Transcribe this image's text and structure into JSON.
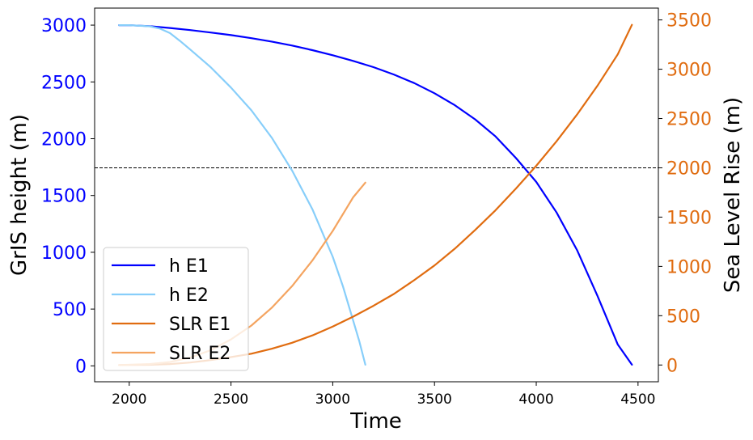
{
  "chart_data": {
    "type": "line",
    "xlabel": "Time",
    "ylabel_left": "GrIS height (m)",
    "ylabel_right": "Sea Level Rise (m)",
    "xlim": [
      1830,
      4600
    ],
    "ylim_left": [
      -140,
      3150
    ],
    "ylim_right": [
      -170,
      3620
    ],
    "x_ticks": [
      2000,
      2500,
      3000,
      3500,
      4000,
      4500
    ],
    "y_ticks_left": [
      0,
      500,
      1000,
      1500,
      2000,
      2500,
      3000
    ],
    "y_ticks_right": [
      0,
      500,
      1000,
      1500,
      2000,
      2500,
      3000,
      3500
    ],
    "x_tick_labels": [
      "2000",
      "2500",
      "3000",
      "3500",
      "4000",
      "4500"
    ],
    "y_tick_labels_left": [
      "0",
      "500",
      "1000",
      "1500",
      "2000",
      "2500",
      "3000"
    ],
    "y_tick_labels_right": [
      "0",
      "500",
      "1000",
      "1500",
      "2000",
      "2500",
      "3000",
      "3500"
    ],
    "left_axis_color": "#0000ff",
    "right_axis_color": "#e06c10",
    "threshold_line": {
      "axis": "right",
      "value": 2000,
      "style": "dashed",
      "color": "#000000"
    },
    "legend_position": "lower-left",
    "series": [
      {
        "name": "h E1",
        "axis": "left",
        "color": "#0000ff",
        "x": [
          1950,
          2000,
          2100,
          2200,
          2300,
          2400,
          2500,
          2600,
          2700,
          2800,
          2900,
          3000,
          3100,
          3200,
          3300,
          3400,
          3500,
          3600,
          3700,
          3800,
          3900,
          4000,
          4100,
          4200,
          4300,
          4400,
          4470
        ],
        "values": [
          3000,
          2999,
          2991,
          2975,
          2956,
          2935,
          2912,
          2885,
          2855,
          2820,
          2780,
          2735,
          2685,
          2630,
          2565,
          2490,
          2400,
          2295,
          2170,
          2020,
          1830,
          1620,
          1350,
          1020,
          620,
          190,
          10
        ]
      },
      {
        "name": "h E2",
        "axis": "left",
        "color": "#87cefa",
        "x": [
          1950,
          2000,
          2100,
          2150,
          2200,
          2250,
          2300,
          2400,
          2500,
          2600,
          2700,
          2800,
          2900,
          3000,
          3050,
          3100,
          3130,
          3160
        ],
        "values": [
          3000,
          3000,
          2990,
          2970,
          2930,
          2860,
          2785,
          2630,
          2450,
          2250,
          2010,
          1720,
          1380,
          960,
          700,
          400,
          220,
          10
        ]
      },
      {
        "name": "SLR E1",
        "axis": "right",
        "color": "#e06c10",
        "x": [
          1950,
          2100,
          2200,
          2300,
          2400,
          2500,
          2600,
          2700,
          2800,
          2900,
          3000,
          3100,
          3200,
          3300,
          3400,
          3500,
          3600,
          3700,
          3800,
          3900,
          4000,
          4100,
          4200,
          4300,
          4400,
          4470
        ],
        "values": [
          0,
          2,
          10,
          25,
          50,
          80,
          115,
          165,
          225,
          300,
          390,
          490,
          600,
          720,
          860,
          1010,
          1180,
          1370,
          1570,
          1790,
          2020,
          2270,
          2540,
          2830,
          3150,
          3450
        ]
      },
      {
        "name": "SLR E2",
        "axis": "right",
        "color": "#f4a460",
        "x": [
          1950,
          2100,
          2200,
          2300,
          2400,
          2500,
          2600,
          2700,
          2800,
          2900,
          3000,
          3100,
          3160
        ],
        "values": [
          0,
          10,
          30,
          75,
          150,
          260,
          400,
          580,
          800,
          1060,
          1360,
          1700,
          1850
        ]
      }
    ]
  }
}
